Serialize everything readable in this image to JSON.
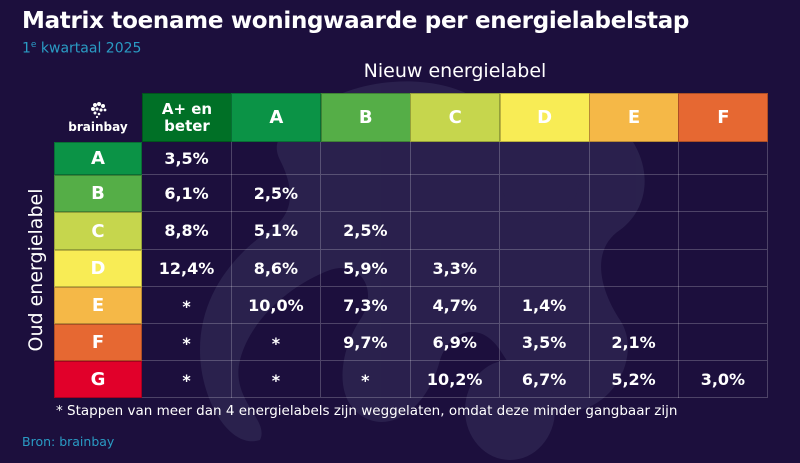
{
  "header": {
    "title": "Matrix toename woningwaarde per energielabelstap",
    "subtitle_prefix": "1",
    "subtitle_sup": "e",
    "subtitle_rest": " kwartaal 2025"
  },
  "logo": {
    "text": "brainbay"
  },
  "chart_data": {
    "type": "table",
    "title": "Matrix toename woningwaarde per energielabelstap",
    "subtitle": "1e kwartaal 2025",
    "xlabel": "Nieuw energielabel",
    "ylabel": "Oud energielabel",
    "columns": [
      {
        "label": "A+ en beter",
        "color": "#007026"
      },
      {
        "label": "A",
        "color": "#0b9346"
      },
      {
        "label": "B",
        "color": "#55ae47"
      },
      {
        "label": "C",
        "color": "#c6d64d"
      },
      {
        "label": "D",
        "color": "#f8ec55"
      },
      {
        "label": "E",
        "color": "#f5b847"
      },
      {
        "label": "F",
        "color": "#e66832"
      }
    ],
    "rows": [
      {
        "label": "A",
        "color": "#0b9346",
        "values": [
          "3,5%",
          "",
          "",
          "",
          "",
          "",
          ""
        ]
      },
      {
        "label": "B",
        "color": "#55ae47",
        "values": [
          "6,1%",
          "2,5%",
          "",
          "",
          "",
          "",
          ""
        ]
      },
      {
        "label": "C",
        "color": "#c6d64d",
        "values": [
          "8,8%",
          "5,1%",
          "2,5%",
          "",
          "",
          "",
          ""
        ]
      },
      {
        "label": "D",
        "color": "#f8ec55",
        "values": [
          "12,4%",
          "8,6%",
          "5,9%",
          "3,3%",
          "",
          "",
          ""
        ]
      },
      {
        "label": "E",
        "color": "#f5b847",
        "values": [
          "*",
          "10,0%",
          "7,3%",
          "4,7%",
          "1,4%",
          "",
          ""
        ]
      },
      {
        "label": "F",
        "color": "#e66832",
        "values": [
          "*",
          "*",
          "9,7%",
          "6,9%",
          "3,5%",
          "2,1%",
          ""
        ]
      },
      {
        "label": "G",
        "color": "#e1002a",
        "values": [
          "*",
          "*",
          "*",
          "10,2%",
          "6,7%",
          "5,2%",
          "3,0%"
        ]
      }
    ],
    "footnote": "* Stappen van meer dan 4 energielabels zijn weggelaten, omdat deze minder gangbaar zijn"
  },
  "footer": {
    "source": "Bron: brainbay"
  },
  "colors": {
    "background": "#1c0f3d",
    "accent": "#2a9bc4"
  }
}
